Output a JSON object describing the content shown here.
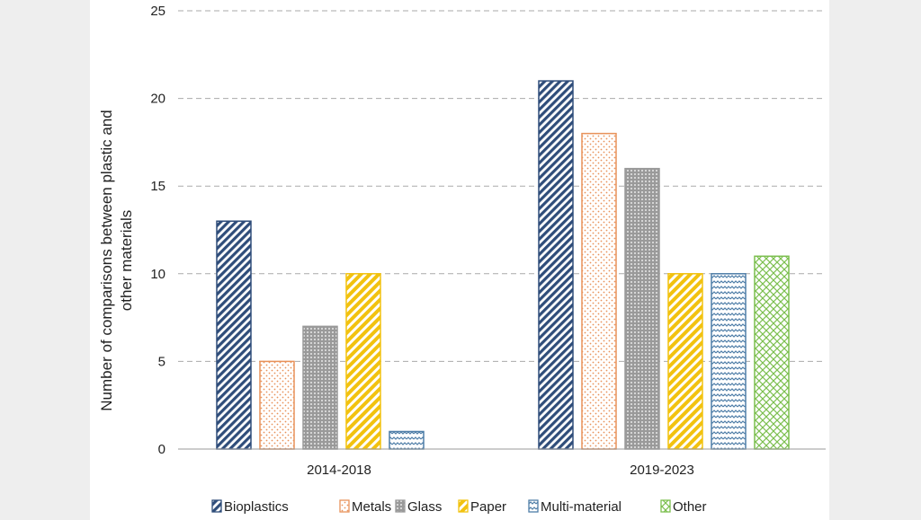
{
  "chart_data": {
    "type": "bar",
    "title": "",
    "xlabel": "",
    "ylabel_lines": [
      "Number of comparisons between plastic and",
      "other materials"
    ],
    "ylim": [
      0,
      25
    ],
    "yticks": [
      0,
      5,
      10,
      15,
      20,
      25
    ],
    "grid": true,
    "legend_position": "bottom",
    "categories": [
      "2014-2018",
      "2019-2023"
    ],
    "series": [
      {
        "name": "Bioplastics",
        "values": [
          13,
          21
        ],
        "color": "#2f4d7a",
        "pattern": "diag-dash"
      },
      {
        "name": "Metals",
        "values": [
          5,
          18
        ],
        "color": "#e8925a",
        "pattern": "dots"
      },
      {
        "name": "Glass",
        "values": [
          7,
          16
        ],
        "color": "#9a9a9a",
        "pattern": "dense-dots"
      },
      {
        "name": "Paper",
        "values": [
          10,
          10
        ],
        "color": "#f2c20f",
        "pattern": "diag-wide"
      },
      {
        "name": "Multi-material",
        "values": [
          1,
          10
        ],
        "color": "#4f7ea8",
        "pattern": "wave"
      },
      {
        "name": "Other",
        "values": [
          null,
          11
        ],
        "color": "#7cbf4f",
        "pattern": "cross"
      }
    ]
  }
}
